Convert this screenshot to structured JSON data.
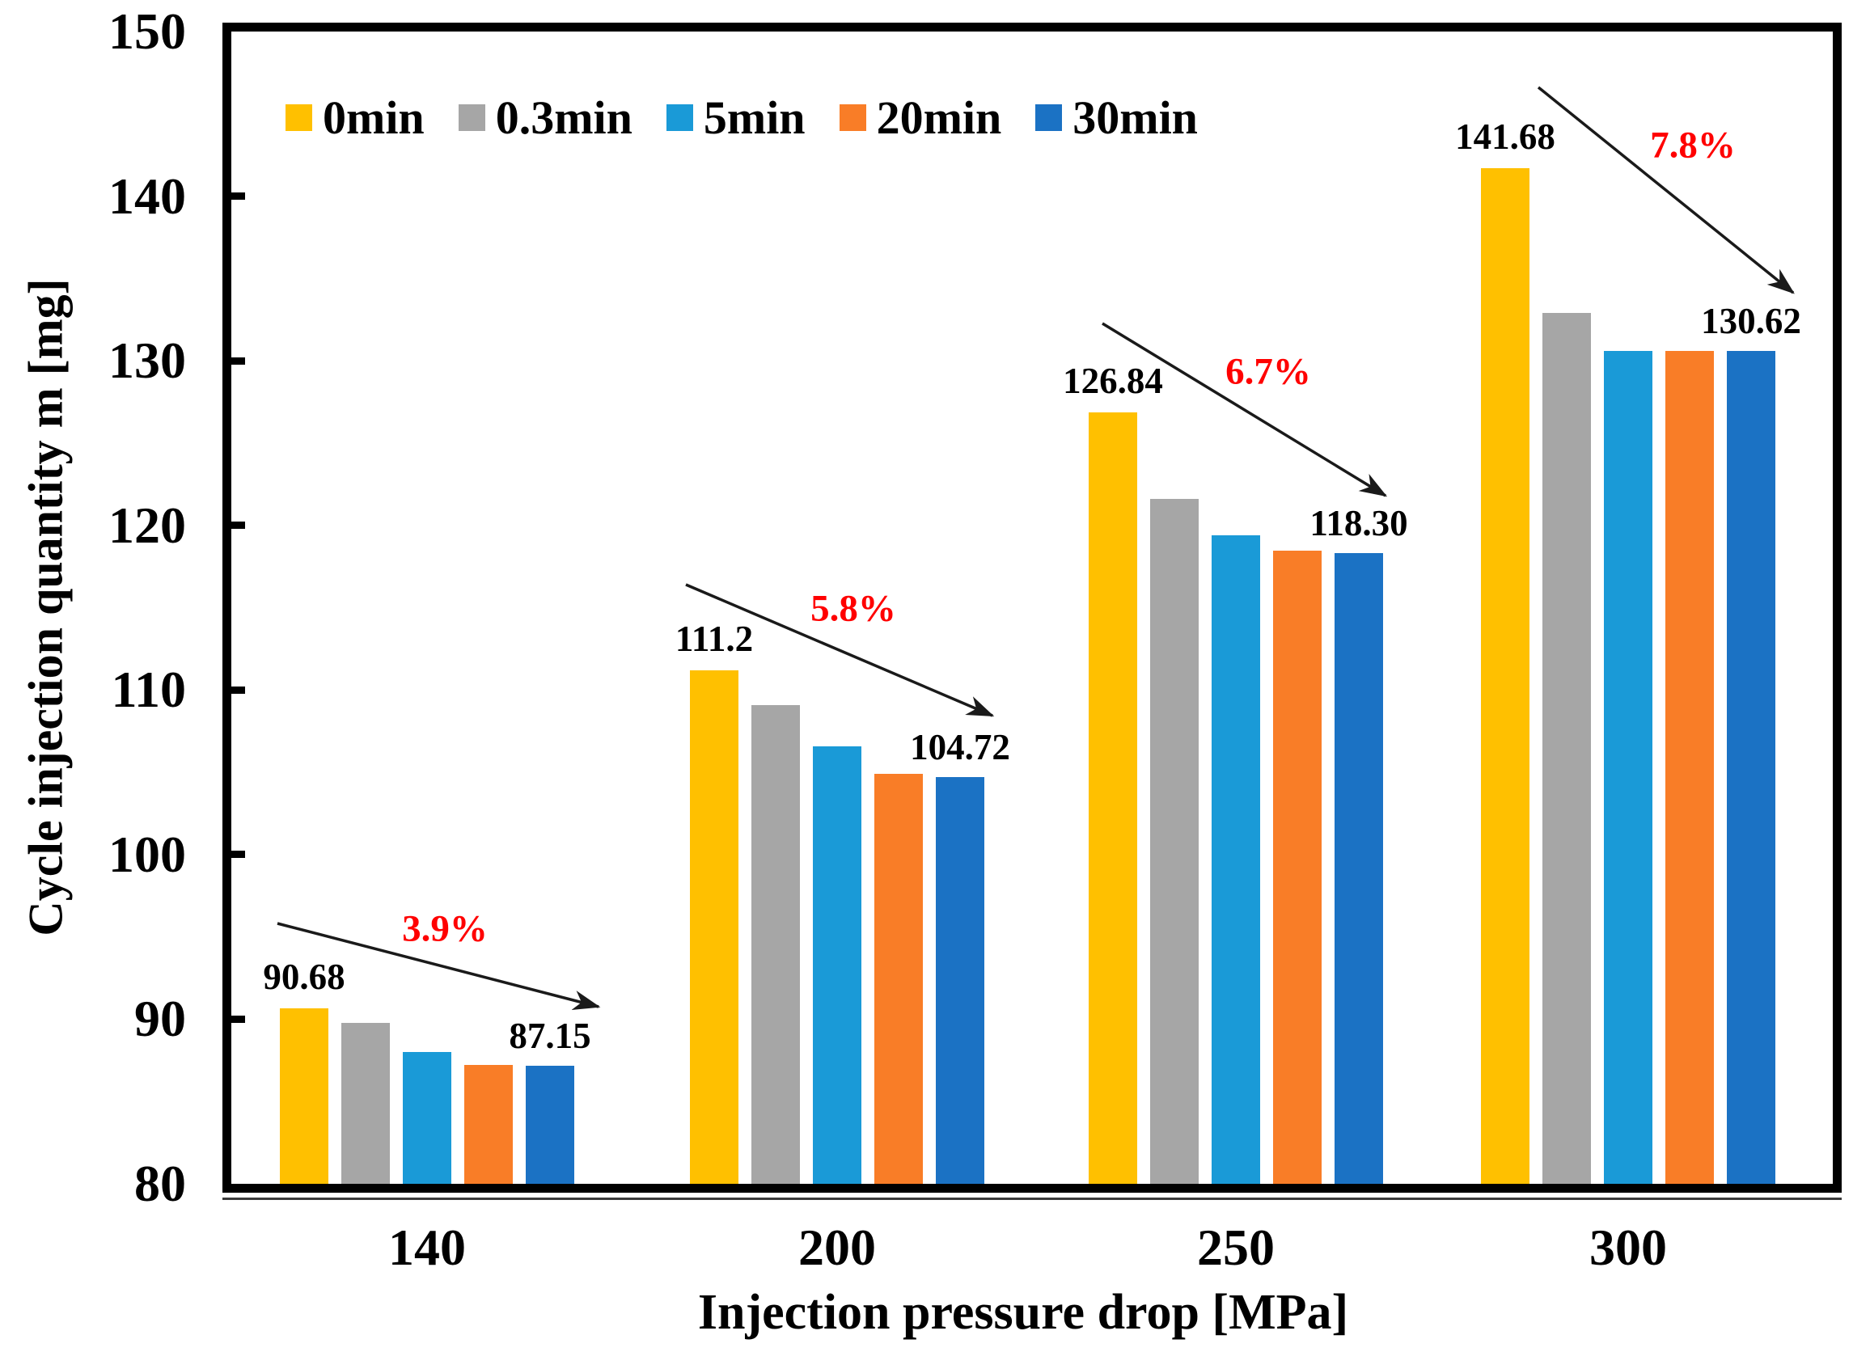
{
  "chart_data": {
    "type": "bar",
    "title": "",
    "xlabel": "Injection pressure drop [MPa]",
    "ylabel": "Cycle injection quantity m [mg]",
    "ylim": [
      80,
      150
    ],
    "yticks": [
      80,
      90,
      100,
      110,
      120,
      130,
      140,
      150
    ],
    "categories": [
      "140",
      "200",
      "250",
      "300"
    ],
    "series": [
      {
        "name": "0min",
        "color": "#FFC000",
        "values": [
          90.68,
          111.2,
          126.84,
          141.68
        ]
      },
      {
        "name": "0.3min",
        "color": "#A6A6A6",
        "values": [
          89.8,
          109.1,
          121.6,
          132.9
        ]
      },
      {
        "name": "5min",
        "color": "#1A9AD7",
        "values": [
          88.0,
          106.6,
          119.4,
          130.6
        ]
      },
      {
        "name": "20min",
        "color": "#F97D27",
        "values": [
          87.2,
          104.9,
          118.45,
          130.6
        ]
      },
      {
        "name": "30min",
        "color": "#1B72C4",
        "values": [
          87.15,
          104.72,
          118.3,
          130.62
        ]
      }
    ],
    "bar_labels": [
      {
        "category": "140",
        "first": "90.68",
        "last": "87.15"
      },
      {
        "category": "200",
        "first": "111.2",
        "last": "104.72"
      },
      {
        "category": "250",
        "first": "126.84",
        "last": "118.30"
      },
      {
        "category": "300",
        "first": "141.68",
        "last": "130.62"
      }
    ],
    "annotations": [
      {
        "category": "140",
        "text": "3.9%"
      },
      {
        "category": "200",
        "text": "5.8%"
      },
      {
        "category": "250",
        "text": "6.7%"
      },
      {
        "category": "300",
        "text": "7.8%"
      }
    ],
    "annotation_color": "#FF0000",
    "arrow_color": "#1A1A1A",
    "axis_color": "#000000",
    "legend_position": "top-left-inside",
    "grid": false
  }
}
